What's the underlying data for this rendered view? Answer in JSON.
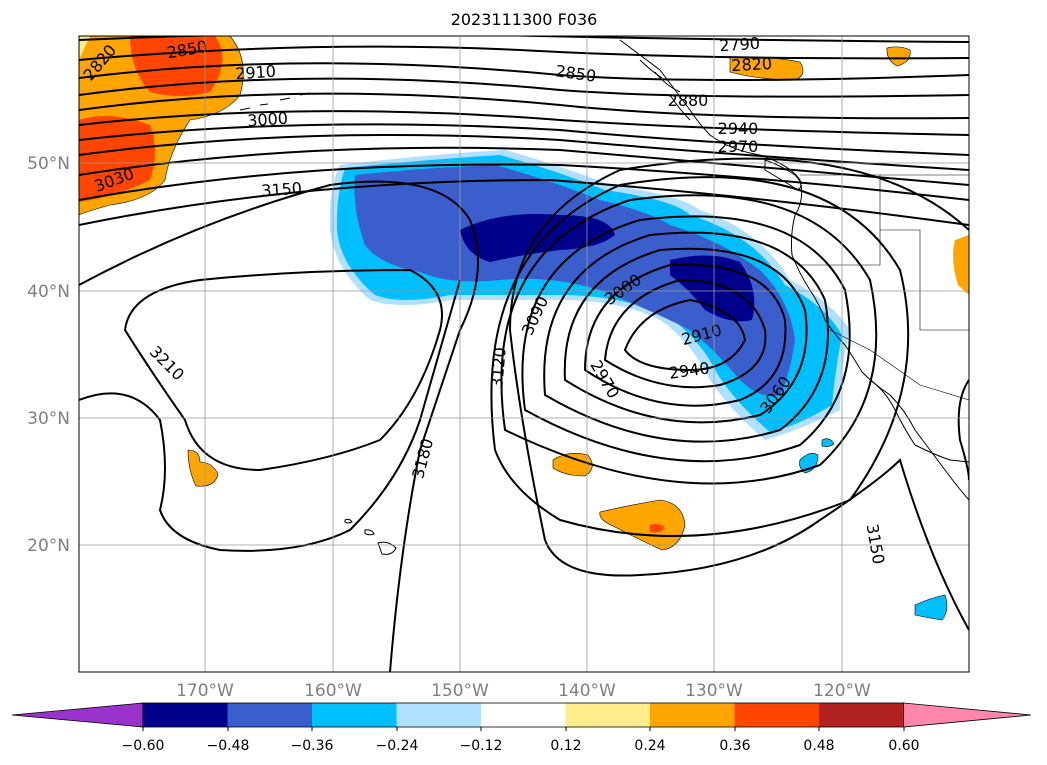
{
  "title": "2023111300 F036",
  "latitude_labels": [
    "50°N",
    "40°N",
    "30°N",
    "20°N"
  ],
  "longitude_labels": [
    "170°W",
    "160°W",
    "150°W",
    "140°W",
    "130°W",
    "120°W"
  ],
  "colorbar": {
    "tick_labels": [
      "−0.60",
      "−0.48",
      "−0.36",
      "−0.24",
      "−0.12",
      "0.12",
      "0.24",
      "0.36",
      "0.48",
      "0.60"
    ],
    "colors": [
      "#9933cc",
      "#00008b",
      "#3a5fcd",
      "#00bfff",
      "#b0e0ff",
      "#ffffff",
      "#ffec8b",
      "#ffa500",
      "#ff4500",
      "#b22222",
      "#ff88aa"
    ]
  },
  "contour_labels": [
    "2790",
    "2820",
    "2820",
    "2850",
    "2850",
    "2880",
    "2910",
    "2910",
    "2940",
    "2940",
    "2970",
    "2970",
    "3000",
    "3000",
    "3030",
    "3060",
    "3090",
    "3120",
    "3150",
    "3150",
    "3180",
    "3210"
  ]
}
